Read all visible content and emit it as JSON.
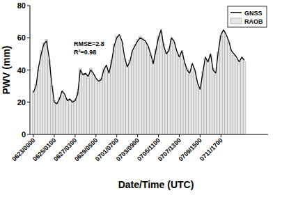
{
  "chart_data": {
    "type": "line",
    "x_label": "Date/Time (UTC)",
    "y_label": "PWV (mm)",
    "annotations": [
      "RMSE=2.8",
      "R²=0.98"
    ],
    "categories": [
      "0623/0000",
      null,
      null,
      null,
      null,
      null,
      null,
      null,
      "0625/0100",
      null,
      null,
      null,
      null,
      null,
      null,
      null,
      "0627/0300",
      null,
      null,
      null,
      null,
      null,
      null,
      null,
      "0629/0500",
      null,
      null,
      null,
      null,
      null,
      null,
      null,
      "0701/0700",
      null,
      null,
      null,
      null,
      null,
      null,
      null,
      "0703/0900",
      null,
      null,
      null,
      null,
      null,
      null,
      null,
      "0705/1100",
      null,
      null,
      null,
      null,
      null,
      null,
      null,
      "0707/1300",
      null,
      null,
      null,
      null,
      null,
      null,
      null,
      "0709/1500",
      null,
      null,
      null,
      null,
      null,
      null,
      null,
      "0711/1700",
      null,
      null,
      null,
      null,
      null,
      null,
      null,
      null,
      null
    ],
    "series": [
      {
        "name": "GNSS",
        "type": "line",
        "color": "#000000",
        "values": [
          26,
          30,
          42,
          50,
          56,
          58,
          48,
          32,
          20,
          19,
          22,
          27,
          25,
          21,
          22,
          20,
          21,
          25,
          40,
          37,
          38,
          36,
          40,
          38,
          35,
          33,
          34,
          40,
          43,
          38,
          45,
          55,
          60,
          62,
          58,
          48,
          42,
          45,
          52,
          55,
          58,
          60,
          59,
          58,
          55,
          50,
          44,
          52,
          60,
          65,
          55,
          50,
          52,
          60,
          58,
          52,
          48,
          52,
          45,
          40,
          38,
          44,
          40,
          32,
          28,
          38,
          48,
          45,
          50,
          40,
          38,
          52,
          62,
          65,
          62,
          58,
          52,
          50,
          48,
          45,
          48,
          46
        ]
      },
      {
        "name": "RAOB",
        "type": "bar",
        "color": "#e6e6e6",
        "values": [
          27,
          31,
          40,
          52,
          57,
          59,
          46,
          30,
          21,
          20,
          23,
          26,
          24,
          22,
          21,
          21,
          22,
          26,
          41,
          38,
          37,
          35,
          41,
          37,
          34,
          32,
          35,
          41,
          42,
          39,
          46,
          56,
          61,
          61,
          57,
          47,
          43,
          46,
          51,
          56,
          59,
          61,
          60,
          57,
          54,
          49,
          45,
          53,
          61,
          63,
          56,
          51,
          53,
          59,
          57,
          51,
          47,
          51,
          44,
          41,
          37,
          43,
          39,
          31,
          29,
          39,
          47,
          46,
          49,
          41,
          37,
          51,
          61,
          64,
          61,
          57,
          51,
          49,
          47,
          44,
          47,
          45
        ]
      }
    ],
    "ylim": [
      0,
      80
    ],
    "yticks": [
      0,
      20,
      40,
      60,
      80
    ],
    "grid": false,
    "legend": "upper right"
  }
}
